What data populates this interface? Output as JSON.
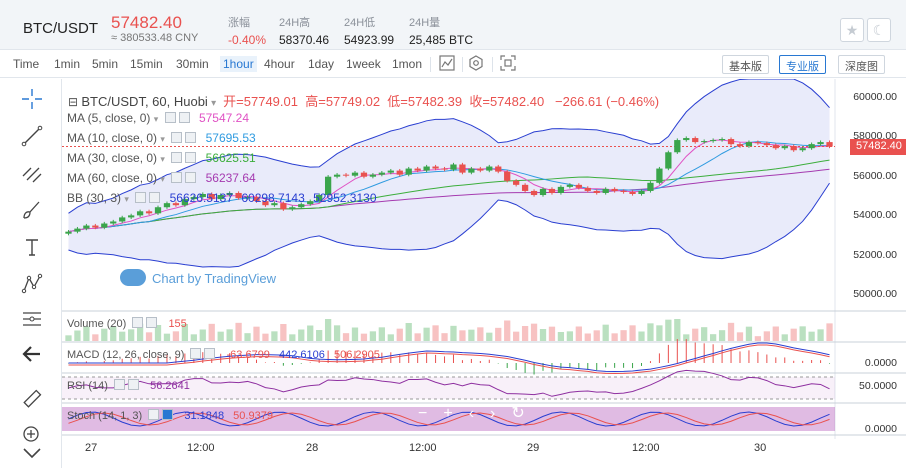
{
  "header": {
    "pair": "BTC/USDT",
    "price": "57482.40",
    "cny": "≈ 380533.48 CNY",
    "stats": [
      {
        "label": "涨幅",
        "value": "-0.40%",
        "red": true
      },
      {
        "label": "24H高",
        "value": "58370.46",
        "red": false
      },
      {
        "label": "24H低",
        "value": "54923.99",
        "red": false
      },
      {
        "label": "24H量",
        "value": "25,485 BTC",
        "red": false
      }
    ],
    "buttons": [
      "star-icon",
      "moon-icon"
    ]
  },
  "toolbar": {
    "timeframes": [
      "Time",
      "1min",
      "5min",
      "15min",
      "30min",
      "1hour",
      "4hour",
      "1day",
      "1week",
      "1mon"
    ],
    "active_timeframe": "1hour",
    "views": [
      "基本版",
      "专业版",
      "深度图"
    ],
    "active_view": "专业版"
  },
  "legend": {
    "title": "BTC/USDT, 60, Huobi",
    "open_label": "开=",
    "open": "57749.01",
    "high_label": "高=",
    "high": "57749.02",
    "low_label": "低=",
    "low": "57482.39",
    "close_label": "收=",
    "close": "57482.40",
    "change": "−266.61 (−0.46%)"
  },
  "indicators": [
    {
      "name": "MA (5, close, 0)",
      "value": "57547.24",
      "color": "#e052c4"
    },
    {
      "name": "MA (10, close, 0)",
      "value": "57695.53",
      "color": "#2f9be0"
    },
    {
      "name": "MA (30, close, 0)",
      "value": "56625.51",
      "color": "#3cae3c"
    },
    {
      "name": "MA (60, close, 0)",
      "value": "56237.64",
      "color": "#a53bb0"
    },
    {
      "name": "BB (30, 3)",
      "values": [
        "56626.5137",
        "60298.7143",
        "52952.3130"
      ],
      "color": "#2a3fd1"
    }
  ],
  "watermark": "Chart by TradingView",
  "price_axis": [
    "60000.00",
    "58000.00",
    "56000.00",
    "54000.00",
    "52000.00",
    "50000.00"
  ],
  "last_price_tag": "57482.40",
  "panes": {
    "volume": {
      "label": "Volume (20)",
      "value": "155"
    },
    "macd": {
      "label": "MACD (12, 26, close, 9)",
      "values": [
        "-63.6799",
        "442.6106",
        "506.2905"
      ]
    },
    "rsi": {
      "label": "RSI (14)",
      "value": "56.2641",
      "axis": "50.0000"
    },
    "stoch": {
      "label": "Stoch (14, 1, 3)",
      "values": [
        "31.1848",
        "50.9379"
      ],
      "axis": "0.0000"
    },
    "macd_axis": "0.0000"
  },
  "time_axis": [
    "27",
    "12:00",
    "28",
    "12:00",
    "29",
    "12:00",
    "30"
  ],
  "colors": {
    "up": "#3aa54b",
    "down": "#e9514f",
    "accent": "#2878d2"
  },
  "chart_data": {
    "type": "candlestick",
    "title": "BTC/USDT, 60, Huobi",
    "ylim": [
      49500,
      60800
    ],
    "close_series": [
      53300,
      53450,
      53600,
      53500,
      53700,
      53800,
      54000,
      54100,
      54300,
      54200,
      54500,
      54700,
      54600,
      54900,
      55000,
      55150,
      54900,
      55100,
      55200,
      54950,
      55000,
      54800,
      54600,
      54700,
      54400,
      54500,
      54650,
      54800,
      55100,
      56000,
      56100,
      56050,
      56200,
      56000,
      56100,
      56200,
      56300,
      56100,
      56400,
      56300,
      56500,
      56400,
      56350,
      56600,
      56200,
      56400,
      56300,
      56500,
      56250,
      55800,
      55600,
      55300,
      55100,
      55400,
      55200,
      55500,
      55600,
      55450,
      55300,
      55200,
      55400,
      55300,
      55250,
      55150,
      55300,
      55700,
      56400,
      57200,
      57800,
      57900,
      57700,
      57750,
      57800,
      57850,
      57600,
      57500,
      57700,
      57650,
      57550,
      57400,
      57500,
      57300,
      57400,
      57600,
      57700,
      57482
    ],
    "bb_upper_end": 60298.71,
    "bb_lower_end": 52952.31
  }
}
